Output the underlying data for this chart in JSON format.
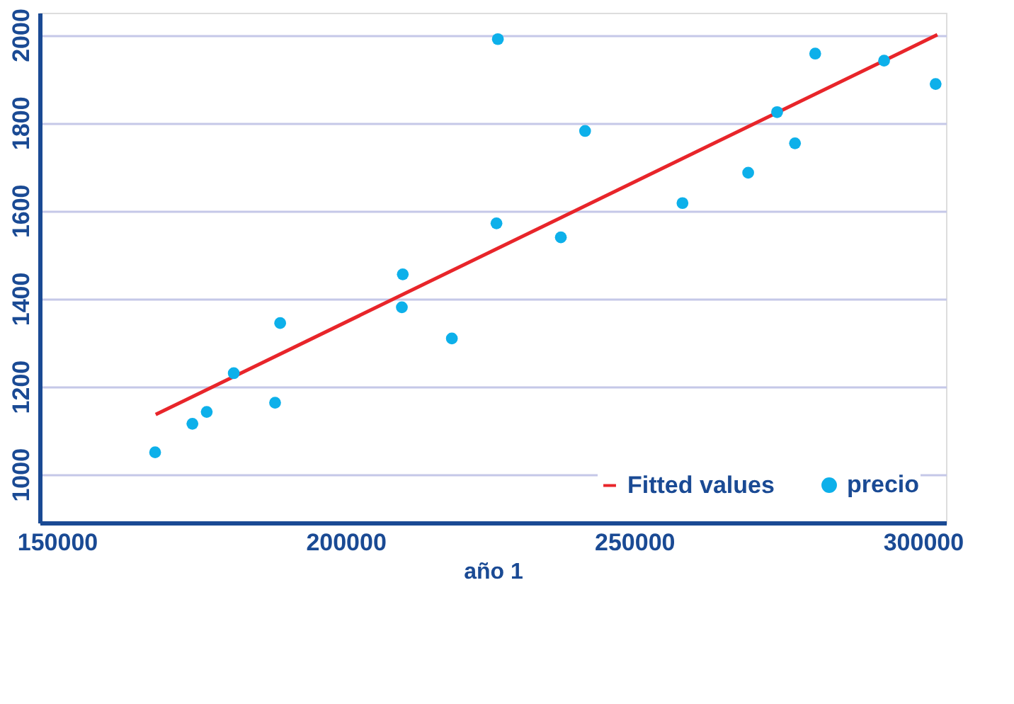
{
  "chart_data": {
    "type": "scatter",
    "xlabel": "año 1",
    "xlim": [
      147000,
      304000
    ],
    "xticks": [
      150000,
      200000,
      250000,
      300000
    ],
    "ylim": [
      890,
      2050
    ],
    "yticks": [
      1000,
      1200,
      1400,
      1600,
      1800,
      2000
    ],
    "grid": "y",
    "legend": "bottom right",
    "series": [
      {
        "name": "Fitted values",
        "type": "line",
        "color": "#e8252a",
        "line_style": "solid",
        "x": [
          167100,
          302500
        ],
        "values": [
          1136,
          2000
        ]
      },
      {
        "name": "precio",
        "marker": "circle",
        "color": "#0db0ea",
        "x": [
          167000,
          173460,
          175940,
          180620,
          187780,
          188660,
          209900,
          209740,
          218400,
          226370,
          226130,
          237280,
          241480,
          258350,
          269730,
          274740,
          277840,
          281340,
          293270,
          302200
        ],
        "values": [
          1050,
          1115,
          1142,
          1230,
          1163,
          1344,
          1455,
          1380,
          1309,
          1990,
          1571,
          1539,
          1781,
          1617,
          1686,
          1824,
          1753,
          1957,
          1941,
          1888
        ]
      }
    ]
  }
}
